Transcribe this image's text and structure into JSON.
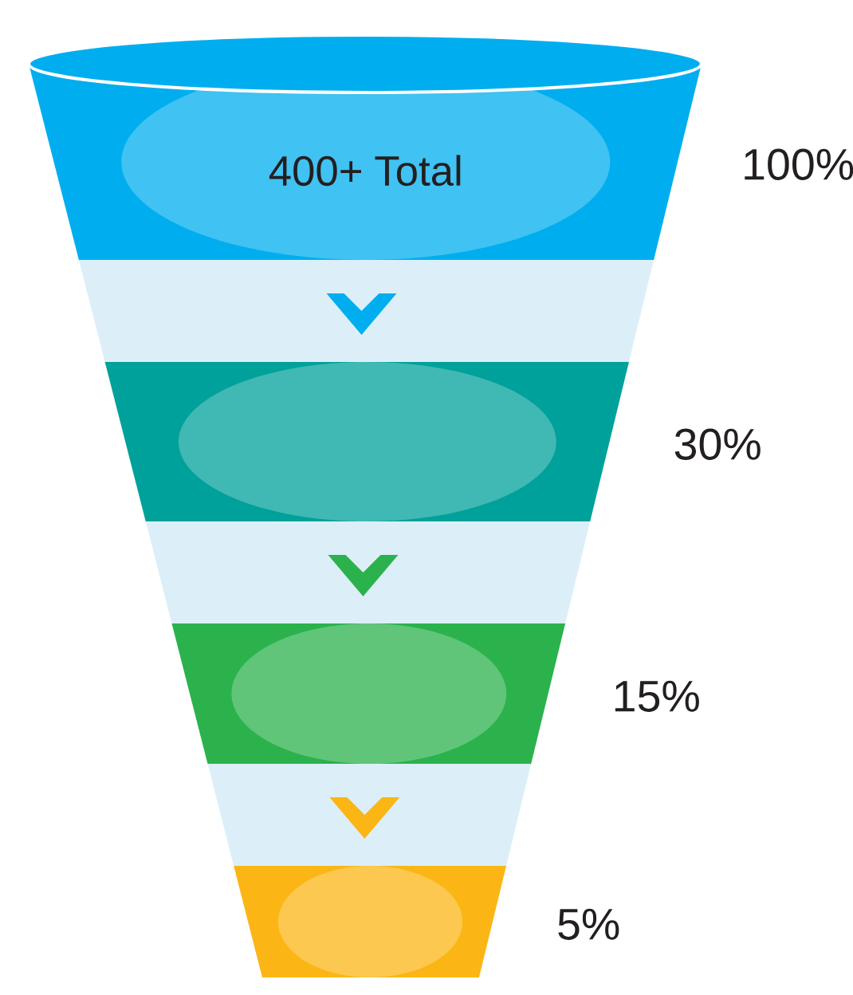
{
  "chart_data": {
    "type": "other",
    "categories": [
      "400+ Total",
      null,
      null,
      null
    ],
    "values": [
      100,
      30,
      15,
      5
    ],
    "value_labels": [
      "100%",
      "30%",
      "15%",
      "5%"
    ],
    "colors": [
      "#00aeef",
      "#00a19a",
      "#2bb24c",
      "#fbb615"
    ]
  }
}
